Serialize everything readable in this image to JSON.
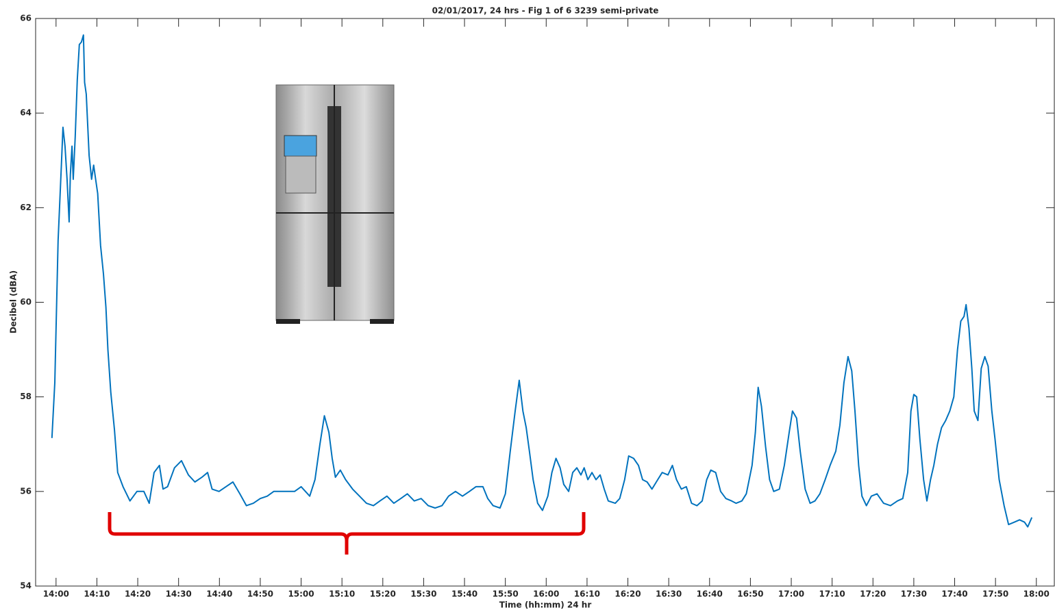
{
  "chart_data": {
    "type": "line",
    "title": "02/01/2017, 24 hrs - Fig 1 of 6 3239 semi-private",
    "x_label": "Time (hh:mm) 24 hr",
    "y_label": "Decibel (dBA)",
    "color": "#0072bd",
    "xlim": [
      835,
      1084.4
    ],
    "ylim": [
      54,
      66
    ],
    "yticks": [
      54,
      56,
      58,
      60,
      62,
      64,
      66
    ],
    "xticks": [
      {
        "value": 840,
        "label": "14:00"
      },
      {
        "value": 850,
        "label": "14:10"
      },
      {
        "value": 860,
        "label": "14:20"
      },
      {
        "value": 870,
        "label": "14:30"
      },
      {
        "value": 880,
        "label": "14:40"
      },
      {
        "value": 890,
        "label": "14:50"
      },
      {
        "value": 900,
        "label": "15:00"
      },
      {
        "value": 910,
        "label": "15:10"
      },
      {
        "value": 920,
        "label": "15:20"
      },
      {
        "value": 930,
        "label": "15:30"
      },
      {
        "value": 940,
        "label": "15:40"
      },
      {
        "value": 950,
        "label": "15:50"
      },
      {
        "value": 960,
        "label": "16:00"
      },
      {
        "value": 970,
        "label": "16:10"
      },
      {
        "value": 980,
        "label": "16:20"
      },
      {
        "value": 990,
        "label": "16:30"
      },
      {
        "value": 1000,
        "label": "16:40"
      },
      {
        "value": 1010,
        "label": "16:50"
      },
      {
        "value": 1020,
        "label": "17:00"
      },
      {
        "value": 1030,
        "label": "17:10"
      },
      {
        "value": 1040,
        "label": "17:20"
      },
      {
        "value": 1050,
        "label": "17:30"
      },
      {
        "value": 1060,
        "label": "17:40"
      },
      {
        "value": 1070,
        "label": "17:50"
      },
      {
        "value": 1080,
        "label": "18:00"
      }
    ],
    "x": [
      839.0,
      839.7,
      840.5,
      841.3,
      841.7,
      842.2,
      842.7,
      843.2,
      843.5,
      843.9,
      844.2,
      844.7,
      845.2,
      845.7,
      846.2,
      846.7,
      847.0,
      847.4,
      848.1,
      848.7,
      849.2,
      849.7,
      850.2,
      850.9,
      851.6,
      852.2,
      852.7,
      853.4,
      854.3,
      855.1,
      856.4,
      858.1,
      859.8,
      861.5,
      862.8,
      864.0,
      865.3,
      866.2,
      867.3,
      869.0,
      870.7,
      872.4,
      874.0,
      875.7,
      877.1,
      878.2,
      879.9,
      881.6,
      883.3,
      885.0,
      886.6,
      888.3,
      890.0,
      891.7,
      893.3,
      895.0,
      896.7,
      898.4,
      900.0,
      902.1,
      903.4,
      904.6,
      905.7,
      906.8,
      907.6,
      908.4,
      909.6,
      910.9,
      912.6,
      914.3,
      916.0,
      917.7,
      919.3,
      921.0,
      922.7,
      924.4,
      926.0,
      927.7,
      929.4,
      931.1,
      932.8,
      934.5,
      936.1,
      937.8,
      939.5,
      941.2,
      942.8,
      944.5,
      945.7,
      947.0,
      948.7,
      950.0,
      951.2,
      952.4,
      953.4,
      954.3,
      955.1,
      955.9,
      956.8,
      957.9,
      959.1,
      960.4,
      961.4,
      962.4,
      963.4,
      964.3,
      965.5,
      966.5,
      967.5,
      968.5,
      969.3,
      970.2,
      971.2,
      972.2,
      973.2,
      974.2,
      975.2,
      976.9,
      978.0,
      979.2,
      980.2,
      981.4,
      982.6,
      983.6,
      984.7,
      985.9,
      987.3,
      988.4,
      989.8,
      990.9,
      991.9,
      993.1,
      994.3,
      995.6,
      996.9,
      998.2,
      999.3,
      1000.3,
      1001.5,
      1002.7,
      1004.0,
      1005.4,
      1006.5,
      1007.9,
      1009.0,
      1010.4,
      1011.2,
      1011.9,
      1012.7,
      1013.7,
      1014.7,
      1015.7,
      1017.1,
      1018.3,
      1019.5,
      1020.3,
      1021.3,
      1022.2,
      1023.4,
      1024.6,
      1025.8,
      1027.0,
      1028.3,
      1029.5,
      1030.9,
      1031.9,
      1032.9,
      1033.9,
      1034.8,
      1035.6,
      1036.5,
      1037.3,
      1038.4,
      1039.6,
      1041.0,
      1042.6,
      1044.3,
      1046.0,
      1047.3,
      1048.5,
      1049.3,
      1050.0,
      1050.7,
      1051.5,
      1052.4,
      1053.2,
      1054.1,
      1054.9,
      1055.8,
      1056.8,
      1057.8,
      1058.8,
      1059.8,
      1060.7,
      1061.5,
      1062.3,
      1062.8,
      1063.5,
      1064.2,
      1064.8,
      1065.7,
      1066.5,
      1067.4,
      1068.2,
      1069.1,
      1069.9,
      1070.9,
      1072.1,
      1073.2,
      1074.6,
      1075.9,
      1077.1,
      1077.9,
      1078.9
    ],
    "values": [
      57.13,
      58.3,
      61.3,
      62.9,
      63.7,
      63.3,
      62.6,
      61.7,
      62.7,
      63.3,
      62.6,
      63.5,
      64.7,
      65.45,
      65.5,
      65.65,
      64.65,
      64.4,
      63.1,
      62.6,
      62.9,
      62.6,
      62.3,
      61.2,
      60.6,
      59.9,
      59.0,
      58.1,
      57.3,
      56.4,
      56.1,
      55.8,
      56.0,
      56.0,
      55.75,
      56.4,
      56.55,
      56.05,
      56.1,
      56.5,
      56.65,
      56.35,
      56.2,
      56.3,
      56.4,
      56.05,
      56.0,
      56.1,
      56.2,
      55.95,
      55.7,
      55.75,
      55.85,
      55.9,
      56.0,
      56.0,
      56.0,
      56.0,
      56.1,
      55.9,
      56.25,
      57.0,
      57.6,
      57.25,
      56.7,
      56.3,
      56.45,
      56.25,
      56.05,
      55.9,
      55.75,
      55.7,
      55.8,
      55.9,
      55.75,
      55.85,
      55.95,
      55.8,
      55.85,
      55.7,
      55.65,
      55.7,
      55.9,
      56.0,
      55.9,
      56.0,
      56.1,
      56.1,
      55.85,
      55.7,
      55.65,
      55.95,
      56.85,
      57.7,
      58.35,
      57.7,
      57.35,
      56.85,
      56.25,
      55.75,
      55.6,
      55.9,
      56.4,
      56.7,
      56.5,
      56.15,
      56.0,
      56.4,
      56.5,
      56.35,
      56.5,
      56.25,
      56.4,
      56.25,
      56.35,
      56.05,
      55.8,
      55.75,
      55.85,
      56.25,
      56.75,
      56.7,
      56.55,
      56.25,
      56.2,
      56.05,
      56.25,
      56.4,
      56.35,
      56.55,
      56.25,
      56.05,
      56.1,
      55.75,
      55.7,
      55.8,
      56.25,
      56.45,
      56.4,
      56.0,
      55.85,
      55.8,
      55.75,
      55.8,
      55.95,
      56.55,
      57.25,
      58.2,
      57.8,
      56.95,
      56.25,
      56.0,
      56.05,
      56.55,
      57.25,
      57.7,
      57.55,
      56.85,
      56.05,
      55.75,
      55.8,
      55.95,
      56.25,
      56.55,
      56.85,
      57.4,
      58.3,
      58.85,
      58.55,
      57.7,
      56.55,
      55.9,
      55.7,
      55.9,
      55.95,
      55.75,
      55.7,
      55.8,
      55.85,
      56.4,
      57.7,
      58.05,
      58.0,
      57.1,
      56.25,
      55.8,
      56.25,
      56.55,
      57.0,
      57.35,
      57.5,
      57.7,
      58.0,
      59.0,
      59.6,
      59.7,
      59.95,
      59.45,
      58.6,
      57.7,
      57.5,
      58.6,
      58.85,
      58.65,
      57.7,
      57.1,
      56.25,
      55.7,
      55.3,
      55.35,
      55.4,
      55.35,
      55.25,
      55.45
    ]
  }
}
